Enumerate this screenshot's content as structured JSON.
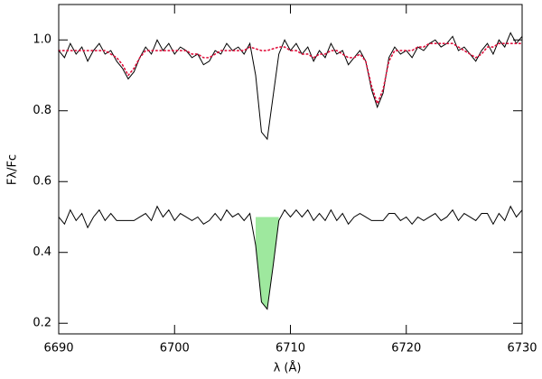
{
  "chart_data": {
    "type": "line",
    "xlabel": "λ (Å)",
    "ylabel": "Fλ/Fc",
    "x": [
      6690,
      6690.5,
      6691,
      6691.5,
      6692,
      6692.5,
      6693,
      6693.5,
      6694,
      6694.5,
      6695,
      6695.5,
      6696,
      6696.5,
      6697,
      6697.5,
      6698,
      6698.5,
      6699,
      6699.5,
      6700,
      6700.5,
      6701,
      6701.5,
      6702,
      6702.5,
      6703,
      6703.5,
      6704,
      6704.5,
      6705,
      6705.5,
      6706,
      6706.5,
      6707,
      6707.5,
      6708,
      6708.5,
      6709,
      6709.5,
      6710,
      6710.5,
      6711,
      6711.5,
      6712,
      6712.5,
      6713,
      6713.5,
      6714,
      6714.5,
      6715,
      6715.5,
      6716,
      6716.5,
      6717,
      6717.5,
      6718,
      6718.5,
      6719,
      6719.5,
      6720,
      6720.5,
      6721,
      6721.5,
      6722,
      6722.5,
      6723,
      6723.5,
      6724,
      6724.5,
      6725,
      6725.5,
      6726,
      6726.5,
      6727,
      6727.5,
      6728,
      6728.5,
      6729,
      6729.5,
      6730
    ],
    "series": [
      {
        "color": "#000000",
        "style": "solid",
        "values": [
          0.97,
          0.95,
          0.99,
          0.96,
          0.98,
          0.94,
          0.97,
          0.99,
          0.96,
          0.97,
          0.94,
          0.92,
          0.89,
          0.91,
          0.95,
          0.98,
          0.96,
          1.0,
          0.97,
          0.99,
          0.96,
          0.98,
          0.97,
          0.95,
          0.96,
          0.93,
          0.94,
          0.97,
          0.96,
          0.99,
          0.97,
          0.98,
          0.96,
          0.99,
          0.9,
          0.74,
          0.72,
          0.84,
          0.96,
          1.0,
          0.97,
          0.99,
          0.96,
          0.98,
          0.94,
          0.97,
          0.95,
          0.99,
          0.96,
          0.97,
          0.93,
          0.95,
          0.97,
          0.94,
          0.86,
          0.81,
          0.85,
          0.95,
          0.98,
          0.96,
          0.97,
          0.95,
          0.98,
          0.97,
          0.99,
          1.0,
          0.98,
          0.99,
          1.01,
          0.97,
          0.98,
          0.96,
          0.94,
          0.97,
          0.99,
          0.96,
          1.0,
          0.98,
          1.02,
          0.99,
          1.01
        ]
      },
      {
        "color": "#e0103c",
        "style": "dotted",
        "values": [
          0.97,
          0.97,
          0.97,
          0.97,
          0.97,
          0.97,
          0.97,
          0.97,
          0.97,
          0.96,
          0.95,
          0.93,
          0.9,
          0.92,
          0.95,
          0.97,
          0.97,
          0.97,
          0.97,
          0.97,
          0.97,
          0.97,
          0.97,
          0.96,
          0.96,
          0.95,
          0.95,
          0.96,
          0.97,
          0.97,
          0.97,
          0.97,
          0.97,
          0.98,
          0.975,
          0.97,
          0.97,
          0.975,
          0.98,
          0.98,
          0.97,
          0.97,
          0.96,
          0.96,
          0.95,
          0.96,
          0.96,
          0.97,
          0.97,
          0.96,
          0.95,
          0.95,
          0.96,
          0.94,
          0.87,
          0.82,
          0.86,
          0.94,
          0.97,
          0.97,
          0.97,
          0.97,
          0.98,
          0.98,
          0.99,
          0.99,
          0.99,
          0.99,
          0.99,
          0.98,
          0.97,
          0.96,
          0.95,
          0.96,
          0.98,
          0.98,
          0.99,
          0.99,
          0.99,
          0.99,
          0.99
        ]
      },
      {
        "color": "#000000",
        "style": "solid",
        "values": [
          0.5,
          0.48,
          0.52,
          0.49,
          0.51,
          0.47,
          0.5,
          0.52,
          0.49,
          0.51,
          0.49,
          0.49,
          0.49,
          0.49,
          0.5,
          0.51,
          0.49,
          0.53,
          0.5,
          0.52,
          0.49,
          0.51,
          0.5,
          0.49,
          0.5,
          0.48,
          0.49,
          0.51,
          0.49,
          0.52,
          0.5,
          0.51,
          0.49,
          0.51,
          0.42,
          0.26,
          0.24,
          0.36,
          0.49,
          0.52,
          0.5,
          0.52,
          0.5,
          0.52,
          0.49,
          0.51,
          0.49,
          0.52,
          0.49,
          0.51,
          0.48,
          0.5,
          0.51,
          0.5,
          0.49,
          0.49,
          0.49,
          0.51,
          0.51,
          0.49,
          0.5,
          0.48,
          0.5,
          0.49,
          0.5,
          0.51,
          0.49,
          0.5,
          0.52,
          0.49,
          0.51,
          0.5,
          0.49,
          0.51,
          0.51,
          0.48,
          0.51,
          0.49,
          0.53,
          0.5,
          0.52
        ]
      }
    ],
    "shade": {
      "from": 6707,
      "to": 6709,
      "level": 0.5,
      "color": "#9ee89e"
    },
    "xlim": [
      6690,
      6730
    ],
    "xticks": [
      6690,
      6700,
      6710,
      6720,
      6730
    ],
    "ylim": [
      0.17,
      1.1
    ],
    "yticks": [
      0.2,
      0.4,
      0.6,
      0.8,
      {
        "value": 1,
        "label": "1.0"
      }
    ]
  }
}
